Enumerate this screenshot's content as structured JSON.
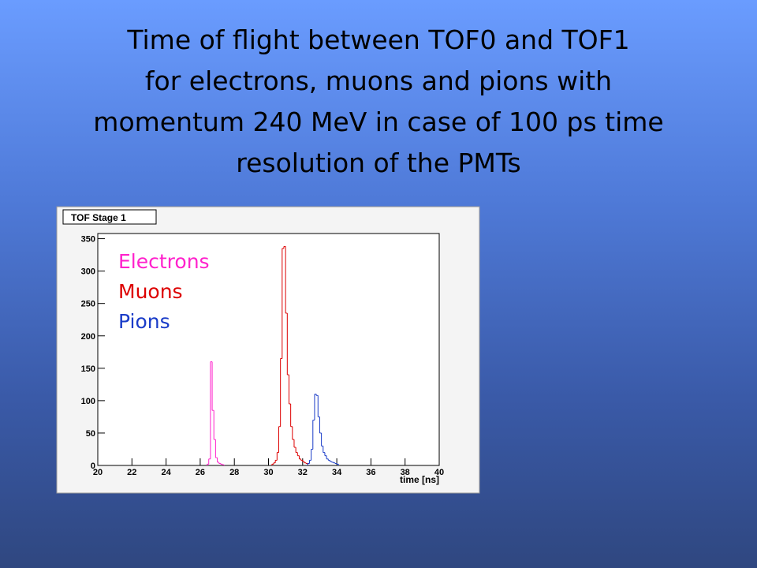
{
  "slide": {
    "title_lines": [
      "Time of flight between TOF0 and TOF1",
      "for electrons, muons and pions with",
      "momentum 240 MeV in case of 100 ps time",
      "resolution of the PMTs"
    ]
  },
  "chart_data": {
    "type": "histogram",
    "title": "TOF Stage 1",
    "x_label": "time [ns]",
    "xlim": [
      20,
      40
    ],
    "xticks": [
      20,
      22,
      24,
      26,
      28,
      30,
      32,
      34,
      36,
      38,
      40
    ],
    "ylim": [
      0,
      358
    ],
    "yticks": [
      0,
      50,
      100,
      150,
      200,
      250,
      300,
      350
    ],
    "series": [
      {
        "name": "Electrons",
        "color": "#ff22cc",
        "bins": [
          26.4,
          26.5,
          26.6,
          26.7,
          26.8,
          26.9,
          27.0,
          27.1,
          27.2,
          27.3,
          27.4
        ],
        "values": [
          2,
          10,
          160,
          85,
          40,
          12,
          5,
          3,
          2,
          1
        ]
      },
      {
        "name": "Muons",
        "color": "#dd0000",
        "bins": [
          30.2,
          30.3,
          30.4,
          30.5,
          30.6,
          30.7,
          30.8,
          30.9,
          31.0,
          31.1,
          31.2,
          31.3,
          31.4,
          31.5,
          31.6,
          31.7,
          31.8,
          31.9,
          32.0,
          32.1,
          32.2,
          32.3
        ],
        "values": [
          2,
          4,
          8,
          20,
          60,
          165,
          335,
          338,
          235,
          140,
          95,
          60,
          40,
          28,
          20,
          15,
          10,
          8,
          6,
          4,
          3
        ]
      },
      {
        "name": "Pions",
        "color": "#1a3cc8",
        "bins": [
          32.3,
          32.4,
          32.5,
          32.6,
          32.7,
          32.8,
          32.9,
          33.0,
          33.1,
          33.2,
          33.3,
          33.4,
          33.5,
          33.6,
          33.7,
          33.8,
          33.9,
          34.0,
          34.1
        ],
        "values": [
          3,
          8,
          25,
          70,
          110,
          108,
          75,
          50,
          30,
          20,
          15,
          10,
          8,
          6,
          5,
          4,
          3,
          2
        ]
      }
    ]
  }
}
